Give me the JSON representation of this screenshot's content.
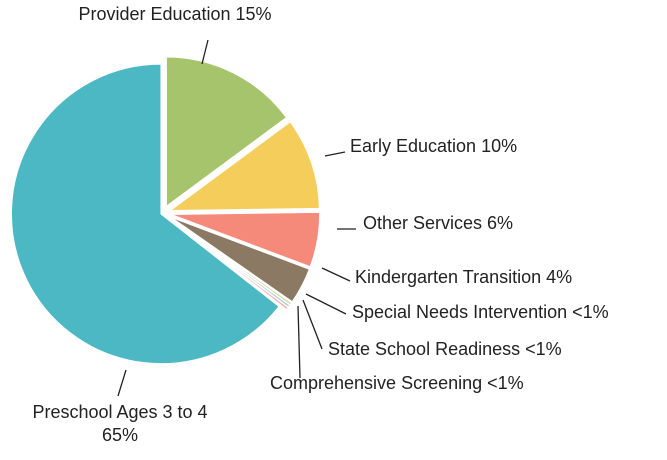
{
  "chart_data": {
    "type": "pie",
    "categories": [
      "Provider Education",
      "Early Education",
      "Other Services",
      "Kindergarten Transition",
      "Special Needs Intervention",
      "State School Readiness",
      "Comprehensive Screening",
      "Preschool Ages 3 to 4"
    ],
    "values": [
      15,
      10,
      6,
      4,
      0.3,
      0.3,
      0.3,
      65
    ],
    "value_labels": [
      "15%",
      "10%",
      "6%",
      "4%",
      "<1%",
      "<1%",
      "<1%",
      "65%"
    ],
    "colors": [
      "#a6c46b",
      "#f5cd5b",
      "#f58a7b",
      "#8b7963",
      "#c8d98c",
      "#aac3dd",
      "#f2a7a1",
      "#4cb8c4"
    ]
  }
}
